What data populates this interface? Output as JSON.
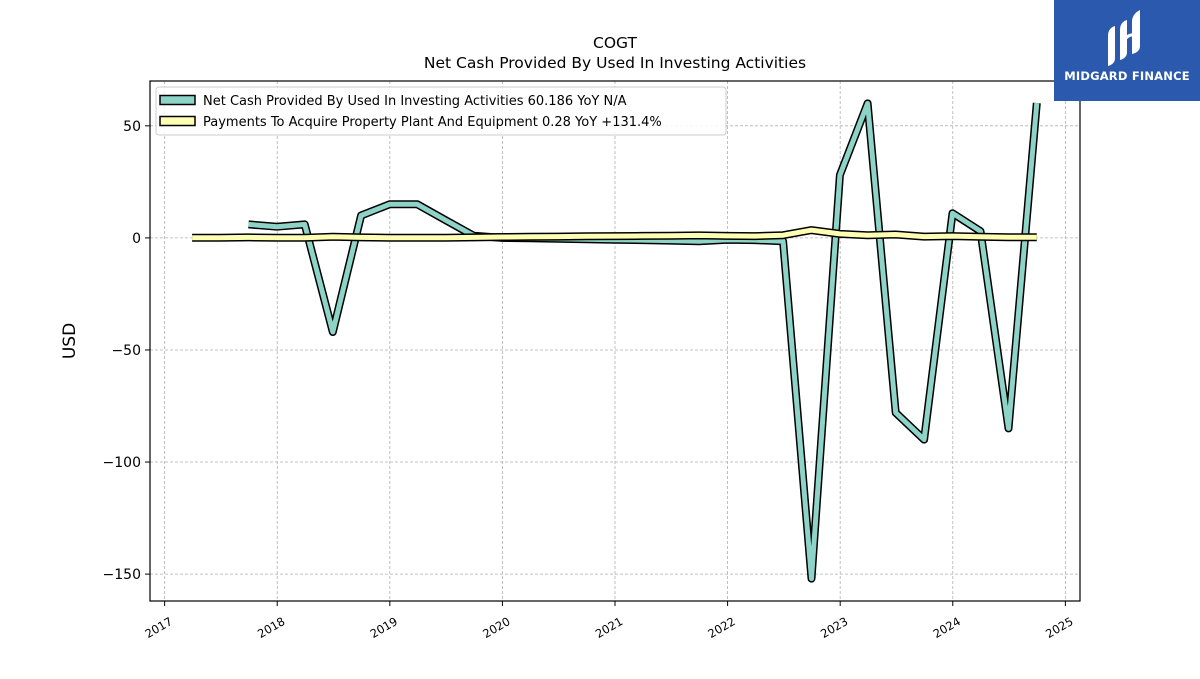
{
  "logo": {
    "text": "MIDGARD FINANCE"
  },
  "chart_data": {
    "type": "line",
    "title": "COGT",
    "subtitle": "Net Cash Provided By Used In Investing Activities",
    "ylabel": "USD",
    "xlabel": "",
    "ylim": [
      -162,
      70
    ],
    "xlim": [
      2016.87,
      2025.13
    ],
    "yticks": [
      50,
      0,
      -50,
      -100,
      -150
    ],
    "ytick_labels": [
      "50",
      "0",
      "−50",
      "−100",
      "−150"
    ],
    "xticks": [
      2017,
      2018,
      2019,
      2020,
      2021,
      2022,
      2023,
      2024,
      2025
    ],
    "xtick_labels": [
      "2017",
      "2018",
      "2019",
      "2020",
      "2021",
      "2022",
      "2023",
      "2024",
      "2025"
    ],
    "grid": true,
    "legend_position": "top-left",
    "series": [
      {
        "name": "Net Cash Provided By Used In Investing Activities  60.186 YoY N/A",
        "color": "#8dd3c7",
        "x": [
          "2017-09-30",
          "2017-12-31",
          "2018-03-31",
          "2018-06-30",
          "2018-09-30",
          "2018-12-31",
          "2019-03-31",
          "2019-06-30",
          "2019-09-30",
          "2019-12-31",
          "2020-03-31",
          "2020-06-30",
          "2020-09-30",
          "2020-12-31",
          "2021-03-31",
          "2021-06-30",
          "2021-09-30",
          "2021-12-31",
          "2022-03-31",
          "2022-06-30",
          "2022-09-30",
          "2022-12-31",
          "2023-03-31",
          "2023-06-30",
          "2023-09-30",
          "2023-12-31",
          "2024-03-31",
          "2024-06-30",
          "2024-09-30"
        ],
        "y": [
          6,
          5,
          6,
          -42,
          10,
          15,
          15,
          8,
          1,
          0,
          -0.2,
          -0.4,
          -0.6,
          -0.8,
          -1,
          -1.2,
          -1.5,
          -0.8,
          -1,
          -1.5,
          -152,
          28,
          60,
          -78,
          -90,
          11,
          3,
          -85,
          60.186
        ]
      },
      {
        "name": "Payments To Acquire Property Plant And Equipment  0.28 YoY +131.4%",
        "color": "#ffffb3",
        "x": [
          "2017-03-31",
          "2017-06-30",
          "2017-09-30",
          "2017-12-31",
          "2018-03-31",
          "2018-06-30",
          "2018-09-30",
          "2018-12-31",
          "2019-03-31",
          "2019-06-30",
          "2019-09-30",
          "2019-12-31",
          "2020-03-31",
          "2020-06-30",
          "2020-09-30",
          "2020-12-31",
          "2021-03-31",
          "2021-06-30",
          "2021-09-30",
          "2021-12-31",
          "2022-03-31",
          "2022-06-30",
          "2022-09-30",
          "2022-12-31",
          "2023-03-31",
          "2023-06-30",
          "2023-09-30",
          "2023-12-31",
          "2024-03-31",
          "2024-06-30",
          "2024-09-30"
        ],
        "y": [
          0.1,
          0.1,
          0.2,
          0.1,
          0.1,
          0.5,
          0.2,
          0.1,
          0.1,
          0.1,
          0.2,
          0.4,
          0.5,
          0.6,
          0.7,
          0.8,
          0.9,
          1.0,
          1.1,
          0.9,
          0.8,
          1.2,
          3.5,
          1.8,
          1.2,
          1.5,
          0.6,
          0.8,
          0.5,
          0.3,
          0.28
        ]
      }
    ]
  }
}
